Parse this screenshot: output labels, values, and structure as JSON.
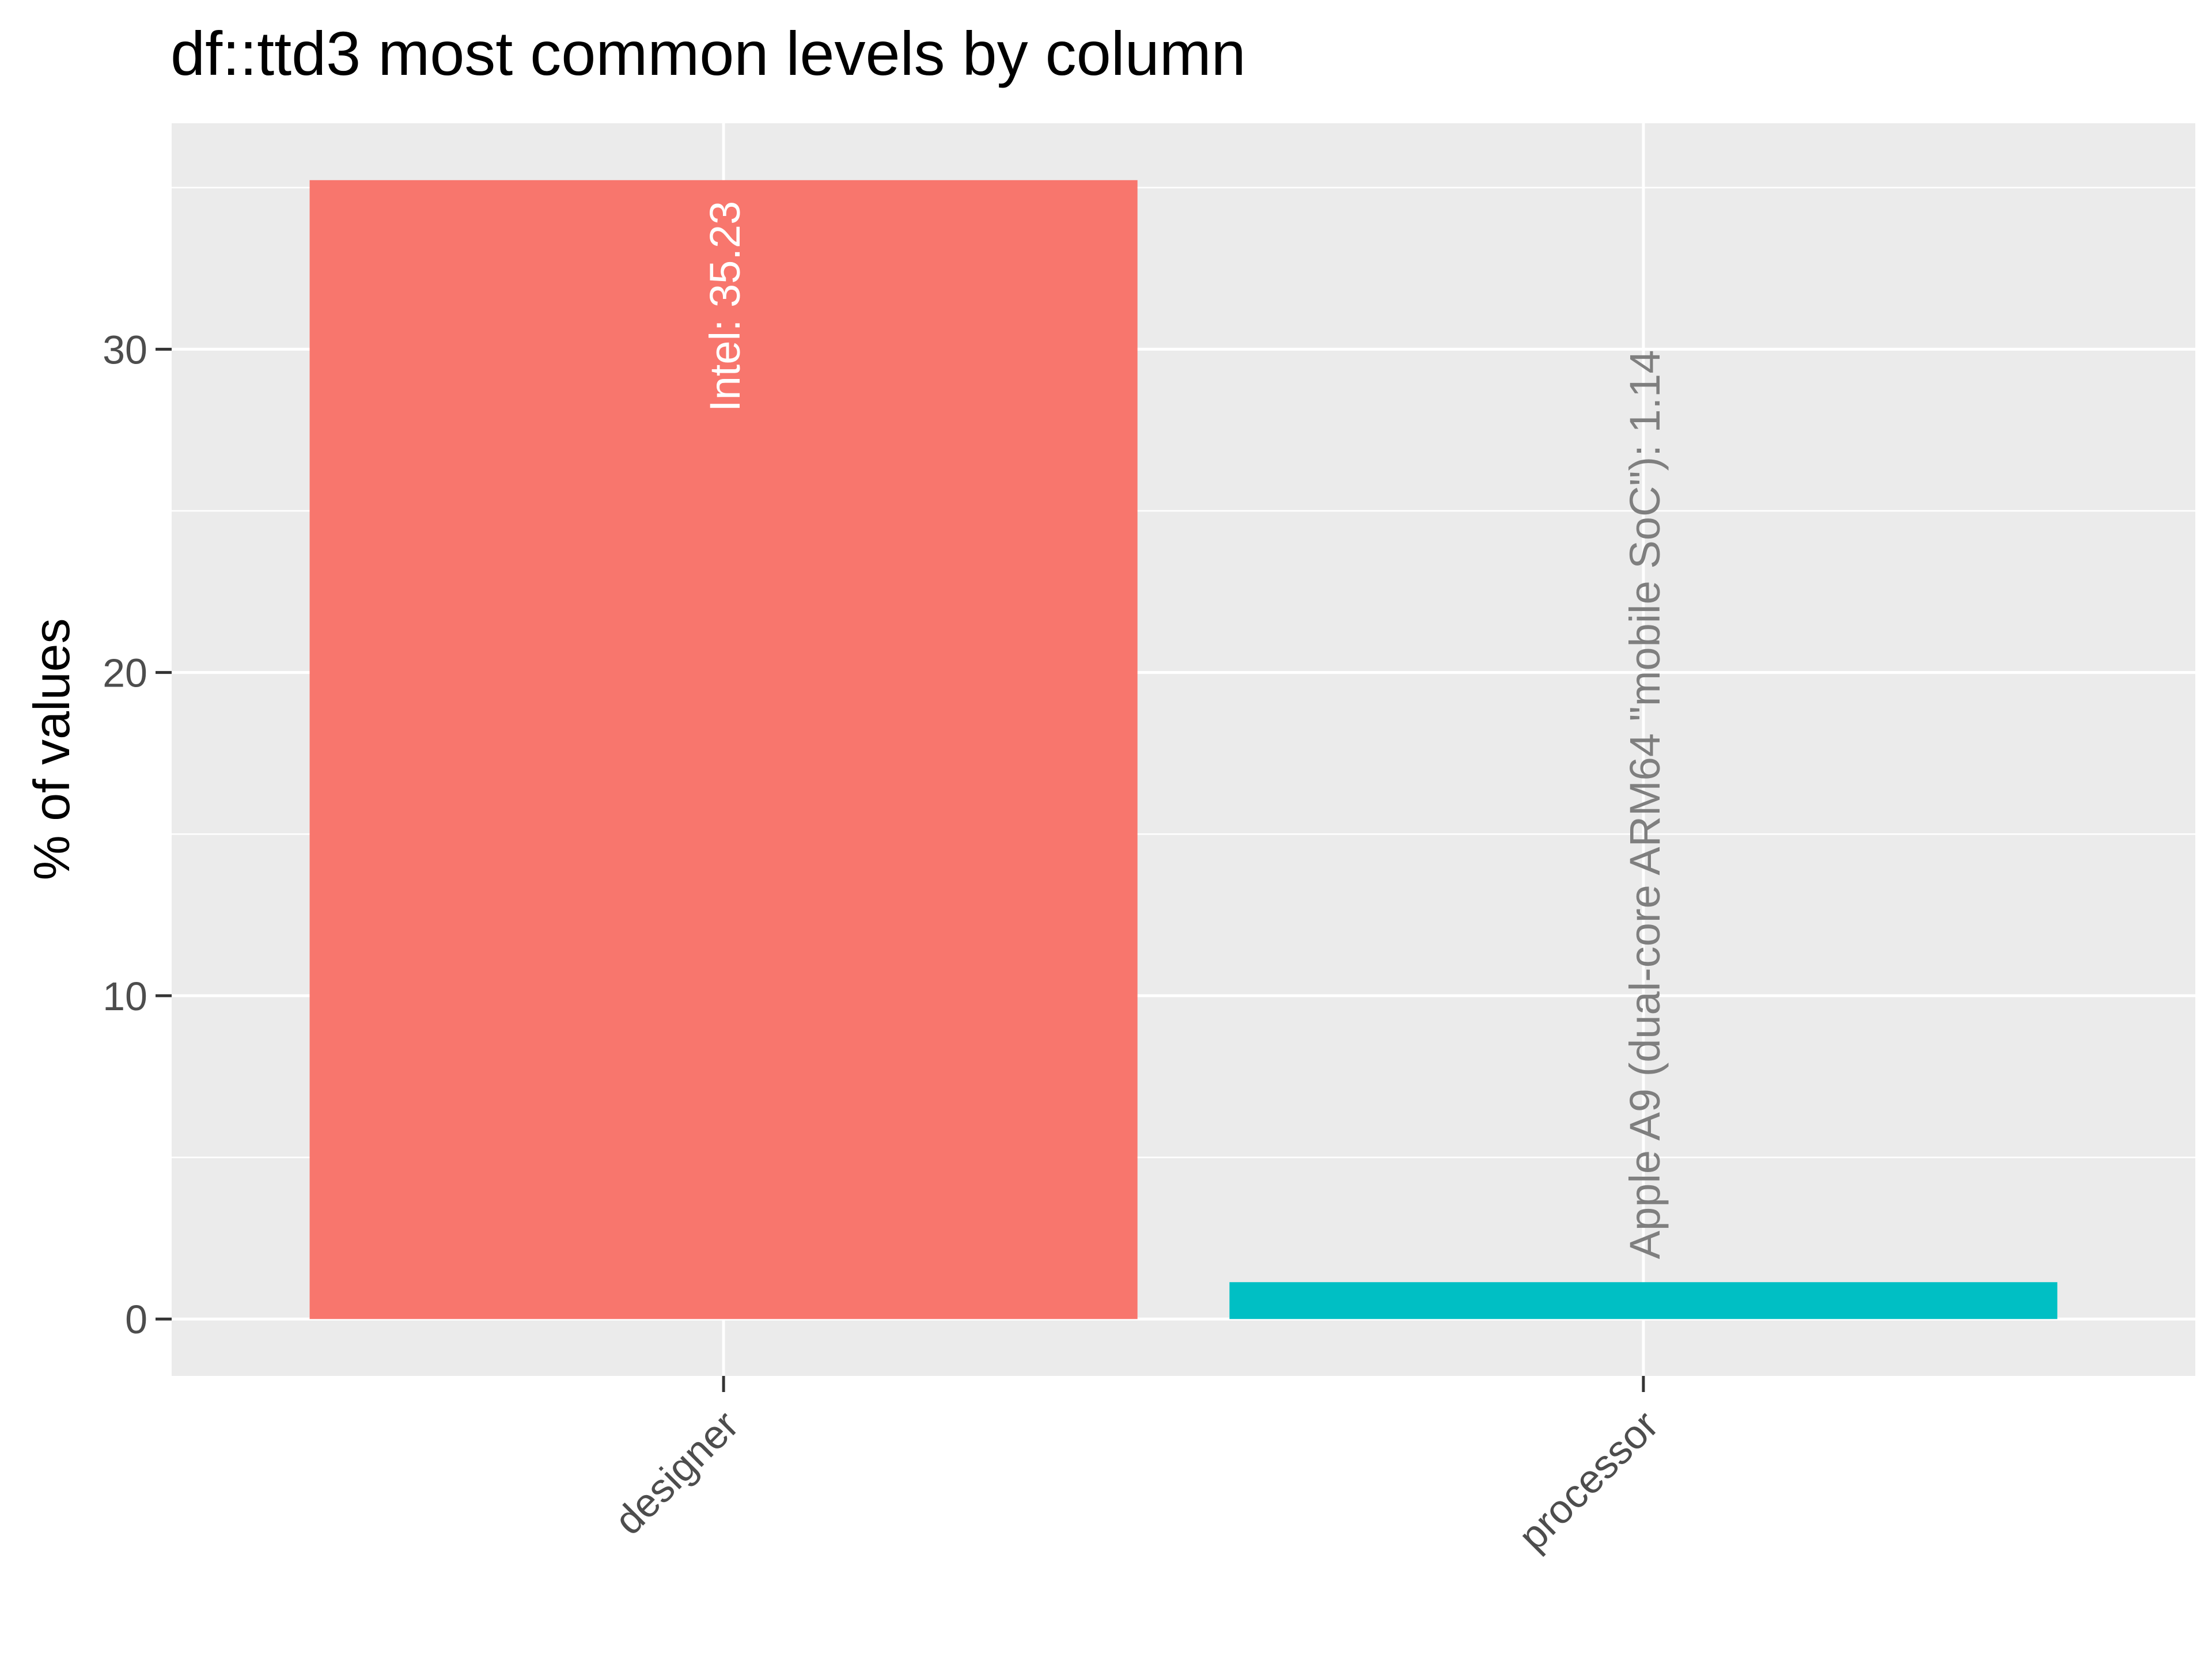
{
  "chart_data": {
    "type": "bar",
    "title": "df::ttd3 most common levels by column",
    "xlabel": "",
    "ylabel": "% of values",
    "categories": [
      "designer",
      "processor"
    ],
    "values": [
      35.23,
      1.14
    ],
    "bar_labels": [
      "Intel:  35.23",
      "Apple A9 (dual-core ARM64 \"mobile SoC\"):  1.14"
    ],
    "bar_colors": [
      "#F8766D",
      "#00BFC4"
    ],
    "bar_label_colors": [
      "#ffffff",
      "#7f7f7f"
    ],
    "ylim": [
      -1.76,
      36.99
    ],
    "yticks": [
      0,
      10,
      20,
      30
    ],
    "grid": true,
    "legend": "none",
    "panel_background": "#EBEBEB",
    "gridline_color": "#ffffff"
  }
}
